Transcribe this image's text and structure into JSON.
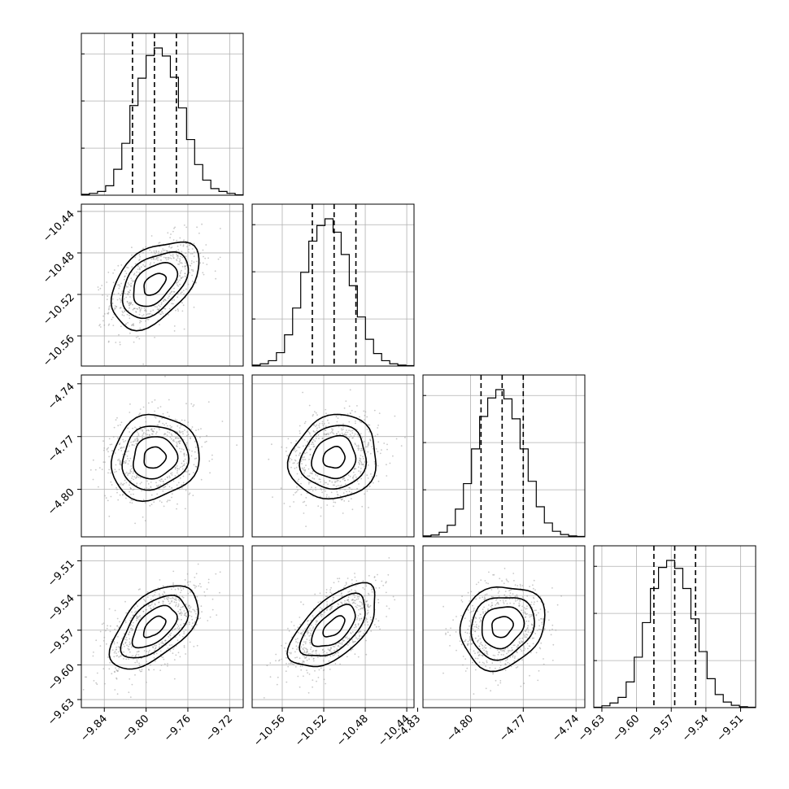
{
  "chart_data": {
    "type": "corner",
    "parameters": [
      {
        "name": "",
        "mean": -9.792,
        "sd": 0.021,
        "quantiles": [
          -9.813,
          -9.792,
          -9.771
        ],
        "ticks": [
          -9.84,
          -9.8,
          -9.76,
          -9.72
        ],
        "tick_labels": [
          "−9.84",
          "−9.80",
          "−9.76",
          "−9.72"
        ],
        "range": [
          -9.862,
          -9.707
        ],
        "histogram_counts": [
          2,
          4,
          8,
          20,
          55,
          110,
          190,
          248,
          296,
          312,
          295,
          250,
          185,
          118,
          65,
          32,
          14,
          8,
          4,
          1
        ]
      },
      {
        "name": "",
        "mean": -10.51,
        "sd": 0.021,
        "quantiles": [
          -10.531,
          -10.51,
          -10.489
        ],
        "ticks": [
          -10.56,
          -10.52,
          -10.48,
          -10.44
        ],
        "tick_labels": [
          "−10.56",
          "−10.52",
          "−10.48",
          "−10.44"
        ],
        "range": [
          -10.589,
          -10.433
        ],
        "histogram_counts": [
          2,
          5,
          12,
          30,
          70,
          130,
          210,
          280,
          315,
          330,
          300,
          250,
          180,
          110,
          60,
          28,
          12,
          5,
          2,
          1
        ]
      },
      {
        "name": "",
        "mean": -4.782,
        "sd": 0.012,
        "quantiles": [
          -4.794,
          -4.782,
          -4.77
        ],
        "ticks": [
          -4.83,
          -4.8,
          -4.77,
          -4.74
        ],
        "tick_labels": [
          "−4.83",
          "−4.80",
          "−4.77",
          "−4.74"
        ],
        "range": [
          -4.827,
          -4.735
        ],
        "histogram_counts": [
          2,
          4,
          10,
          25,
          60,
          115,
          190,
          260,
          300,
          318,
          298,
          255,
          190,
          120,
          65,
          30,
          12,
          5,
          2,
          1
        ]
      },
      {
        "name": "",
        "mean": -9.567,
        "sd": 0.018,
        "quantiles": [
          -9.585,
          -9.567,
          -9.549
        ],
        "ticks": [
          -9.63,
          -9.6,
          -9.57,
          -9.54,
          -9.51
        ],
        "tick_labels": [
          "−9.63",
          "−9.60",
          "−9.57",
          "−9.54",
          "−9.51"
        ],
        "range": [
          -9.637,
          -9.497
        ],
        "histogram_counts": [
          1,
          4,
          10,
          22,
          55,
          108,
          182,
          255,
          300,
          315,
          298,
          255,
          190,
          120,
          62,
          28,
          12,
          5,
          2,
          1
        ]
      }
    ],
    "correlations": {
      "1-0": 0.45,
      "2-0": 0.1,
      "2-1": 0.1,
      "3-0": 0.55,
      "3-1": 0.6,
      "3-2": 0.15
    },
    "contour_levels_sigma": [
      0.5,
      1.0,
      1.5,
      2.0
    ],
    "quantile_levels": [
      0.16,
      0.5,
      0.84
    ],
    "grid": true,
    "colors": {
      "scatter": "#9a9a9a",
      "density_dark": "#000000",
      "contours": "#000000",
      "quantile_lines": "#000000",
      "grid": "#b0b0b0"
    }
  }
}
